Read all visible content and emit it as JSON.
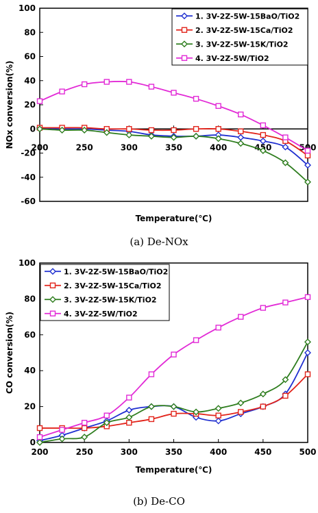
{
  "chart_data": [
    {
      "type": "line",
      "caption": "(a)  De-NOx",
      "xlabel": "Temperature(℃)",
      "ylabel": "NOx conversion(%)",
      "xlim": [
        200,
        500
      ],
      "ylim": [
        -60,
        100
      ],
      "xticks": [
        200,
        250,
        300,
        350,
        400,
        450,
        500
      ],
      "yticks": [
        -60,
        -40,
        -20,
        0,
        20,
        40,
        60,
        80,
        100
      ],
      "x_axis_at": 0,
      "grid": false,
      "legend_placement": "top-right",
      "series": [
        {
          "name": "1. 3V-2Z-5W-15BaO/TiO2",
          "color": "#1f2fd0",
          "marker": "diamond",
          "x": [
            200,
            225,
            250,
            275,
            300,
            325,
            350,
            375,
            400,
            425,
            450,
            475,
            500
          ],
          "values": [
            1,
            0,
            0,
            -1,
            -2,
            -5,
            -6,
            -6,
            -5,
            -7,
            -10,
            -15,
            -30
          ]
        },
        {
          "name": "2. 3V-2Z-5W-15Ca/TiO2",
          "color": "#e2231a",
          "marker": "square",
          "x": [
            200,
            225,
            250,
            275,
            300,
            325,
            350,
            375,
            400,
            425,
            450,
            475,
            500
          ],
          "values": [
            1,
            1,
            1,
            0,
            0,
            -1,
            -1,
            0,
            0,
            -2,
            -5,
            -10,
            -22
          ]
        },
        {
          "name": "3. 3V-2Z-5W-15K/TiO2",
          "color": "#2e7d1e",
          "marker": "diamond",
          "x": [
            200,
            225,
            250,
            275,
            300,
            325,
            350,
            375,
            400,
            425,
            450,
            475,
            500
          ],
          "values": [
            0,
            -1,
            -1,
            -3,
            -5,
            -6,
            -7,
            -6,
            -8,
            -12,
            -18,
            -28,
            -44
          ]
        },
        {
          "name": "4. 3V-2Z-5W/TiO2",
          "color": "#e22ad6",
          "marker": "square",
          "x": [
            200,
            225,
            250,
            275,
            300,
            325,
            350,
            375,
            400,
            425,
            450,
            475,
            500
          ],
          "values": [
            23,
            31,
            37,
            39,
            39,
            35,
            30,
            25,
            19,
            12,
            3,
            -7,
            -18
          ]
        }
      ]
    },
    {
      "type": "line",
      "caption": "(b)  De-CO",
      "xlabel": "Temperature(℃)",
      "ylabel": "CO conversion(%)",
      "xlim": [
        200,
        500
      ],
      "ylim": [
        0,
        100
      ],
      "xticks": [
        200,
        250,
        300,
        350,
        400,
        450,
        500
      ],
      "yticks": [
        0,
        20,
        40,
        60,
        80,
        100
      ],
      "x_axis_at": 0,
      "grid": false,
      "legend_placement": "top-left",
      "series": [
        {
          "name": "1. 3V-2Z-5W-15BaO/TiO2",
          "color": "#1f2fd0",
          "marker": "diamond",
          "x": [
            200,
            225,
            250,
            275,
            300,
            325,
            350,
            375,
            400,
            425,
            450,
            475,
            500
          ],
          "values": [
            1,
            4,
            8,
            12,
            18,
            20,
            20,
            14,
            12,
            16,
            20,
            27,
            50
          ]
        },
        {
          "name": "2. 3V-2Z-5W-15Ca/TiO2",
          "color": "#e2231a",
          "marker": "square",
          "x": [
            200,
            225,
            250,
            275,
            300,
            325,
            350,
            375,
            400,
            425,
            450,
            475,
            500
          ],
          "values": [
            8,
            8,
            8,
            9,
            11,
            13,
            16,
            16,
            15,
            17,
            20,
            26,
            38
          ]
        },
        {
          "name": "3. 3V-2Z-5W-15K/TiO2",
          "color": "#2e7d1e",
          "marker": "diamond",
          "x": [
            200,
            225,
            250,
            275,
            300,
            325,
            350,
            375,
            400,
            425,
            450,
            475,
            500
          ],
          "values": [
            0,
            2,
            3,
            11,
            14,
            20,
            20,
            17,
            19,
            22,
            27,
            35,
            56
          ]
        },
        {
          "name": "4. 3V-2Z-5W/TiO2",
          "color": "#e22ad6",
          "marker": "square",
          "x": [
            200,
            225,
            250,
            275,
            300,
            325,
            350,
            375,
            400,
            425,
            450,
            475,
            500
          ],
          "values": [
            3,
            7,
            11,
            15,
            25,
            38,
            49,
            57,
            64,
            70,
            75,
            78,
            81
          ]
        }
      ]
    }
  ]
}
